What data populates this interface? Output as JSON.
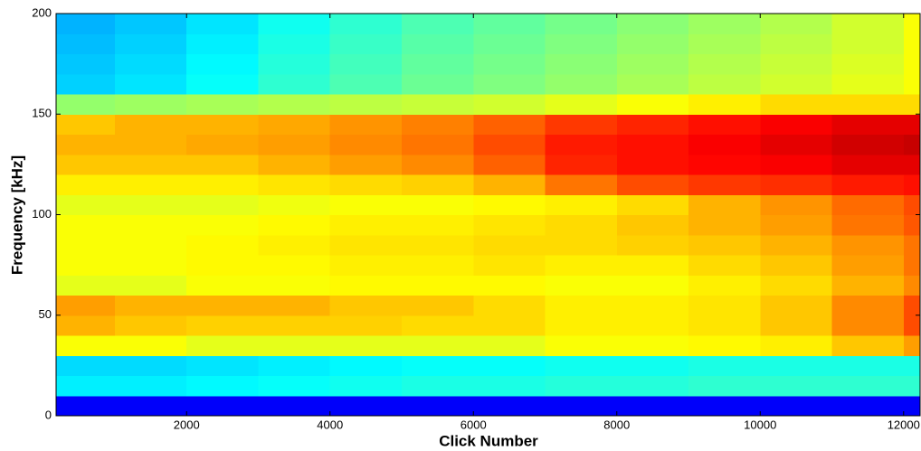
{
  "chart_data": {
    "type": "heatmap",
    "colormap": "jet",
    "x_label": "Click Number",
    "y_label": "Frequency [kHz]",
    "xlim": [
      180,
      12230
    ],
    "xticks": [
      2000,
      4000,
      6000,
      8000,
      10000,
      12000
    ],
    "ylim": [
      0,
      200
    ],
    "yticks": [
      0,
      50,
      100,
      150,
      200
    ],
    "zlim": [
      0,
      1
    ],
    "x_edges": [
      180,
      1000,
      2000,
      3000,
      4000,
      5000,
      6000,
      7000,
      8000,
      9000,
      10000,
      11000,
      12000,
      12230
    ],
    "y_edges": [
      0,
      10,
      20,
      30,
      40,
      50,
      60,
      70,
      80,
      90,
      100,
      110,
      120,
      130,
      140,
      150,
      160,
      170,
      180,
      190,
      200
    ],
    "z": [
      [
        0.12,
        0.12,
        0.12,
        0.12,
        0.12,
        0.12,
        0.12,
        0.12,
        0.12,
        0.12,
        0.12,
        0.12,
        0.12
      ],
      [
        0.36,
        0.36,
        0.37,
        0.38,
        0.39,
        0.4,
        0.4,
        0.41,
        0.41,
        0.42,
        0.42,
        0.42,
        0.42
      ],
      [
        0.34,
        0.34,
        0.35,
        0.36,
        0.37,
        0.38,
        0.38,
        0.39,
        0.39,
        0.4,
        0.4,
        0.4,
        0.4
      ],
      [
        0.62,
        0.62,
        0.6,
        0.6,
        0.6,
        0.6,
        0.6,
        0.62,
        0.62,
        0.63,
        0.64,
        0.68,
        0.72
      ],
      [
        0.7,
        0.68,
        0.67,
        0.67,
        0.67,
        0.66,
        0.66,
        0.64,
        0.64,
        0.65,
        0.68,
        0.74,
        0.8
      ],
      [
        0.72,
        0.7,
        0.7,
        0.7,
        0.68,
        0.68,
        0.66,
        0.64,
        0.64,
        0.65,
        0.68,
        0.74,
        0.8
      ],
      [
        0.6,
        0.6,
        0.62,
        0.62,
        0.63,
        0.63,
        0.63,
        0.62,
        0.62,
        0.64,
        0.66,
        0.7,
        0.74
      ],
      [
        0.62,
        0.62,
        0.63,
        0.63,
        0.64,
        0.64,
        0.65,
        0.64,
        0.64,
        0.66,
        0.68,
        0.72,
        0.76
      ],
      [
        0.62,
        0.62,
        0.63,
        0.64,
        0.65,
        0.65,
        0.66,
        0.66,
        0.67,
        0.68,
        0.7,
        0.73,
        0.76
      ],
      [
        0.62,
        0.62,
        0.62,
        0.63,
        0.64,
        0.64,
        0.65,
        0.66,
        0.68,
        0.7,
        0.72,
        0.76,
        0.79
      ],
      [
        0.6,
        0.6,
        0.6,
        0.61,
        0.62,
        0.62,
        0.63,
        0.64,
        0.66,
        0.7,
        0.73,
        0.77,
        0.8
      ],
      [
        0.64,
        0.64,
        0.64,
        0.65,
        0.66,
        0.67,
        0.7,
        0.76,
        0.8,
        0.82,
        0.83,
        0.85,
        0.86
      ],
      [
        0.68,
        0.68,
        0.68,
        0.7,
        0.72,
        0.74,
        0.78,
        0.84,
        0.86,
        0.87,
        0.88,
        0.9,
        0.9
      ],
      [
        0.7,
        0.7,
        0.71,
        0.72,
        0.74,
        0.76,
        0.8,
        0.85,
        0.86,
        0.88,
        0.9,
        0.92,
        0.93
      ],
      [
        0.68,
        0.7,
        0.7,
        0.71,
        0.73,
        0.75,
        0.78,
        0.82,
        0.84,
        0.86,
        0.88,
        0.9,
        0.9
      ],
      [
        0.52,
        0.53,
        0.54,
        0.55,
        0.56,
        0.57,
        0.58,
        0.6,
        0.62,
        0.64,
        0.66,
        0.66,
        0.66
      ],
      [
        0.33,
        0.35,
        0.38,
        0.42,
        0.45,
        0.48,
        0.5,
        0.52,
        0.54,
        0.56,
        0.58,
        0.6,
        0.62
      ],
      [
        0.32,
        0.34,
        0.37,
        0.41,
        0.44,
        0.47,
        0.49,
        0.51,
        0.53,
        0.55,
        0.57,
        0.59,
        0.62
      ],
      [
        0.31,
        0.33,
        0.36,
        0.4,
        0.43,
        0.46,
        0.48,
        0.5,
        0.52,
        0.54,
        0.56,
        0.58,
        0.62
      ],
      [
        0.3,
        0.32,
        0.35,
        0.39,
        0.42,
        0.45,
        0.47,
        0.49,
        0.51,
        0.53,
        0.55,
        0.58,
        0.62
      ]
    ]
  }
}
